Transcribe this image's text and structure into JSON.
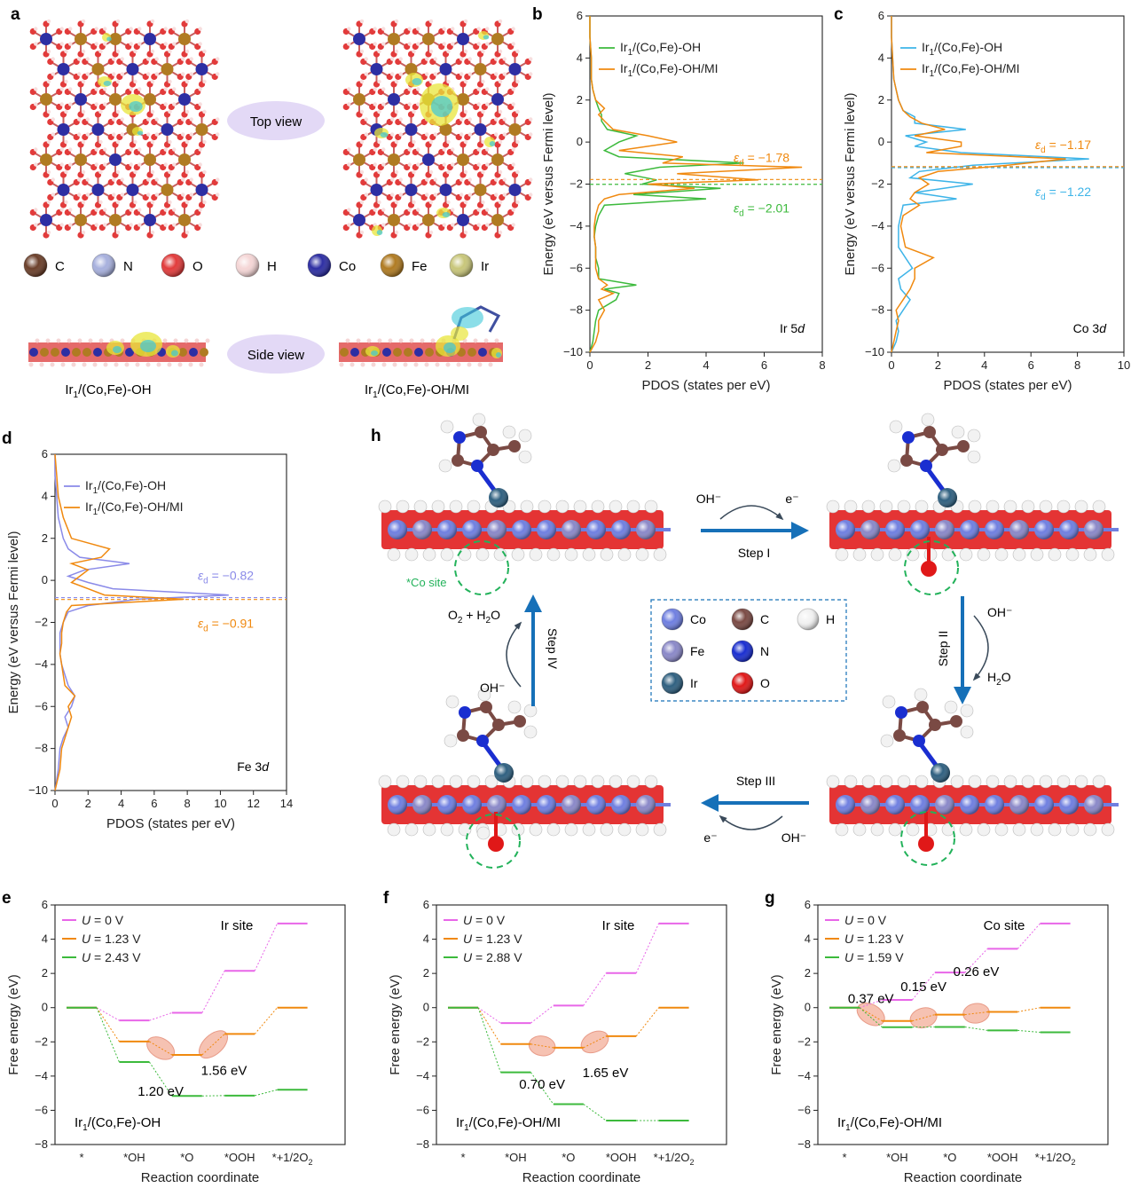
{
  "colors": {
    "orange": "#f0890f",
    "green": "#3cba3c",
    "cyan": "#3db4e8",
    "lavender": "#8a8ae8",
    "pink": "#e866e8",
    "blue_arrow": "#1670b8",
    "site_circle": "#22b25a",
    "bubble_fill": "#f4b7a5",
    "purple_label": "#e3d9f6"
  },
  "panel_a": {
    "letter": "a",
    "top_view_label": "Top view",
    "side_view_label": "Side view",
    "left_caption": "Ir1/(Co,Fe)-OH",
    "right_caption": "Ir1/(Co,Fe)-OH/MI",
    "legend": [
      {
        "symbol": "C",
        "color": "#6b3f2a"
      },
      {
        "symbol": "N",
        "color": "#a7b0dd"
      },
      {
        "symbol": "O",
        "color": "#e23b3b"
      },
      {
        "symbol": "H",
        "color": "#f5d6d6"
      },
      {
        "symbol": "Co",
        "color": "#2d2ea3"
      },
      {
        "symbol": "Fe",
        "color": "#b07b22"
      },
      {
        "symbol": "Ir",
        "color": "#c8c67a"
      }
    ]
  },
  "chart_data": [
    {
      "id": "b",
      "type": "line",
      "orientation": "horizontal-pdos",
      "xlabel": "PDOS (states per eV)",
      "ylabel": "Energy (eV versus Fermi level)",
      "xlim": [
        0,
        8
      ],
      "ylim": [
        -10,
        6
      ],
      "xticks": [
        0,
        2,
        4,
        6,
        8
      ],
      "yticks": [
        6,
        4,
        2,
        0,
        -2,
        -4,
        -6,
        -8,
        -10
      ],
      "annotation": "Ir 5d",
      "series": [
        {
          "name": "Ir1/(Co,Fe)-OH",
          "color": "green",
          "d_band_center": -2.01,
          "energy": [
            -10,
            -9.5,
            -9,
            -8.5,
            -8,
            -7.5,
            -7.2,
            -7,
            -6.8,
            -6.5,
            -6,
            -5.5,
            -5,
            -4.5,
            -4,
            -3.5,
            -3,
            -2.7,
            -2.5,
            -2.2,
            -2,
            -1.8,
            -1.5,
            -1.2,
            -1,
            -0.7,
            -0.4,
            0,
            0.3,
            0.6,
            1,
            1.3,
            1.6,
            2,
            2.5,
            3,
            4,
            5,
            6
          ],
          "pdos": [
            0,
            0.1,
            0.15,
            0.2,
            0.3,
            0.9,
            1.0,
            0.5,
            1.6,
            0.3,
            0.3,
            0.2,
            0.2,
            0.15,
            0.2,
            0.3,
            0.5,
            4.0,
            1.5,
            4.5,
            1.8,
            2.3,
            1.2,
            2.4,
            5.3,
            1.0,
            0.5,
            1.0,
            1.6,
            0.6,
            0.4,
            0.4,
            0.3,
            0.2,
            0.1,
            0.05,
            0.05,
            0,
            0
          ]
        },
        {
          "name": "Ir1/(Co,Fe)-OH/MI",
          "color": "orange",
          "d_band_center": -1.78,
          "energy": [
            -10,
            -9.5,
            -9,
            -8.5,
            -8,
            -7.5,
            -7.2,
            -7,
            -6.8,
            -6.5,
            -6,
            -5.5,
            -5,
            -4.5,
            -4,
            -3.5,
            -3,
            -2.7,
            -2.5,
            -2.2,
            -2,
            -1.8,
            -1.5,
            -1.2,
            -1,
            -0.7,
            -0.4,
            0,
            0.3,
            0.6,
            1,
            1.3,
            1.6,
            2,
            2.5,
            3,
            4,
            5,
            6
          ],
          "pdos": [
            0,
            0.2,
            0.3,
            0.3,
            0.5,
            0.3,
            0.8,
            0.4,
            0.6,
            0.3,
            0.2,
            0.2,
            0.2,
            0.15,
            0.15,
            0.2,
            0.3,
            0.5,
            1.0,
            3.6,
            2.0,
            5.8,
            3.0,
            7.3,
            2.5,
            3.2,
            1.0,
            3.0,
            2.0,
            0.8,
            0.5,
            0.3,
            0.5,
            0.2,
            0.1,
            0.05,
            0.05,
            0,
            0
          ]
        }
      ],
      "labels": [
        {
          "text": "εd = −1.78",
          "color": "orange"
        },
        {
          "text": "εd = −2.01",
          "color": "green"
        }
      ]
    },
    {
      "id": "c",
      "type": "line",
      "orientation": "horizontal-pdos",
      "xlabel": "PDOS (states per eV)",
      "ylabel": "Energy (eV versus Fermi level)",
      "xlim": [
        0,
        10
      ],
      "ylim": [
        -10,
        6
      ],
      "xticks": [
        0,
        2,
        4,
        6,
        8,
        10
      ],
      "yticks": [
        6,
        4,
        2,
        0,
        -2,
        -4,
        -6,
        -8,
        -10
      ],
      "annotation": "Co 3d",
      "series": [
        {
          "name": "Ir1/(Co,Fe)-OH",
          "color": "cyan",
          "d_band_center": -1.22,
          "energy": [
            -10,
            -9.5,
            -9,
            -8.5,
            -8,
            -7.5,
            -7,
            -6.5,
            -6,
            -5.5,
            -5,
            -4.5,
            -4,
            -3.5,
            -3,
            -2.7,
            -2.4,
            -2,
            -1.7,
            -1.4,
            -1.1,
            -0.8,
            -0.5,
            -0.2,
            0,
            0.3,
            0.6,
            0.9,
            1.2,
            1.5,
            2,
            2.5,
            3,
            4,
            5,
            6
          ],
          "pdos": [
            0,
            0.2,
            0.3,
            0.2,
            0.5,
            0.8,
            0.4,
            0.3,
            0.9,
            0.6,
            0.3,
            0.3,
            0.3,
            0.4,
            0.5,
            2.8,
            1.0,
            3.5,
            0.8,
            1.2,
            3.5,
            8.5,
            3.0,
            1.0,
            1.5,
            0.6,
            3.2,
            1.0,
            1.0,
            0.5,
            0.3,
            0.2,
            0.1,
            0.05,
            0,
            0
          ]
        },
        {
          "name": "Ir1/(Co,Fe)-OH/MI",
          "color": "orange",
          "d_band_center": -1.17,
          "energy": [
            -10,
            -9.5,
            -9,
            -8.5,
            -8,
            -7.5,
            -7,
            -6.5,
            -6,
            -5.5,
            -5,
            -4.5,
            -4,
            -3.5,
            -3,
            -2.7,
            -2.4,
            -2,
            -1.7,
            -1.4,
            -1.1,
            -0.8,
            -0.5,
            -0.2,
            0,
            0.3,
            0.6,
            0.9,
            1.2,
            1.5,
            2,
            2.5,
            3,
            4,
            5,
            6
          ],
          "pdos": [
            0,
            0.1,
            0.2,
            0.3,
            0.2,
            0.5,
            0.8,
            1.0,
            1.0,
            1.8,
            0.6,
            0.5,
            0.4,
            0.5,
            1.2,
            0.8,
            1.0,
            1.6,
            1.2,
            2.0,
            5.0,
            7.5,
            1.5,
            3.0,
            3.0,
            1.0,
            2.3,
            1.3,
            0.8,
            0.5,
            0.3,
            0.2,
            0.1,
            0.05,
            0,
            0
          ]
        }
      ],
      "labels": [
        {
          "text": "εd = −1.17",
          "color": "orange"
        },
        {
          "text": "εd = −1.22",
          "color": "cyan"
        }
      ]
    },
    {
      "id": "d",
      "type": "line",
      "orientation": "horizontal-pdos",
      "xlabel": "PDOS (states per eV)",
      "ylabel": "Energy (eV versus Fermi level)",
      "xlim": [
        0,
        14
      ],
      "ylim": [
        -10,
        6
      ],
      "xticks": [
        0,
        2,
        4,
        6,
        8,
        10,
        12,
        14
      ],
      "yticks": [
        6,
        4,
        2,
        0,
        -2,
        -4,
        -6,
        -8,
        -10
      ],
      "annotation": "Fe 3d",
      "series": [
        {
          "name": "Ir1/(Co,Fe)-OH",
          "color": "lavender",
          "d_band_center": -0.82,
          "energy": [
            -10,
            -9,
            -8,
            -7.5,
            -7,
            -6.5,
            -6,
            -5.5,
            -5,
            -4.5,
            -4,
            -3.5,
            -3,
            -2.5,
            -2,
            -1.5,
            -1.2,
            -0.9,
            -0.7,
            -0.4,
            -0.1,
            0.2,
            0.5,
            0.8,
            1.1,
            1.5,
            2,
            3,
            4,
            5,
            6
          ],
          "pdos": [
            0,
            0.2,
            0.3,
            0.5,
            0.8,
            0.6,
            1.0,
            1.2,
            0.8,
            0.6,
            0.4,
            0.3,
            0.3,
            0.3,
            0.5,
            0.8,
            2.0,
            5.0,
            10.5,
            3.5,
            2.0,
            0.8,
            1.8,
            4.5,
            1.5,
            0.8,
            0.5,
            0.2,
            0.1,
            0,
            0
          ]
        },
        {
          "name": "Ir1/(Co,Fe)-OH/MI",
          "color": "orange",
          "d_band_center": -0.91,
          "energy": [
            -10,
            -9,
            -8,
            -7.5,
            -7,
            -6.5,
            -6,
            -5.5,
            -5,
            -4.5,
            -4,
            -3.5,
            -3,
            -2.5,
            -2,
            -1.5,
            -1.2,
            -0.9,
            -0.7,
            -0.4,
            -0.1,
            0.2,
            0.5,
            0.8,
            1.1,
            1.5,
            2,
            3,
            4,
            5,
            6
          ],
          "pdos": [
            0,
            0.3,
            0.4,
            0.6,
            0.8,
            1.0,
            0.8,
            1.2,
            0.6,
            0.5,
            0.4,
            0.3,
            0.4,
            0.4,
            0.5,
            0.7,
            1.0,
            7.8,
            3.0,
            2.0,
            1.0,
            1.5,
            2.0,
            1.0,
            2.8,
            3.3,
            1.0,
            0.5,
            0.2,
            0.1,
            0
          ]
        }
      ],
      "labels": [
        {
          "text": "εd = −0.82",
          "color": "lavender"
        },
        {
          "text": "εd = −0.91",
          "color": "orange"
        }
      ]
    },
    {
      "id": "e",
      "type": "line",
      "subtype": "free-energy-steps",
      "xlabel": "Reaction coordinate",
      "ylabel": "Free energy (eV)",
      "ylim": [
        -8,
        6
      ],
      "yticks": [
        6,
        4,
        2,
        0,
        -2,
        -4,
        -6,
        -8
      ],
      "categories": [
        "*",
        "*OH",
        "*O",
        "*OOH",
        "*+1/2O2"
      ],
      "site_label": "Ir site",
      "material_label": "Ir1/(Co,Fe)-OH",
      "series": [
        {
          "name": "U = 0 V",
          "color": "pink",
          "values": [
            0,
            -0.75,
            -0.3,
            2.15,
            4.92
          ]
        },
        {
          "name": "U = 1.23 V",
          "color": "orange",
          "values": [
            0,
            -1.98,
            -2.76,
            -1.54,
            0
          ]
        },
        {
          "name": "U = 2.43 V",
          "color": "green",
          "values": [
            0,
            -3.18,
            -5.16,
            -5.14,
            -4.8
          ]
        }
      ],
      "barriers": [
        {
          "text": "1.20 eV",
          "step": 2
        },
        {
          "text": "1.56 eV",
          "step": 3
        }
      ]
    },
    {
      "id": "f",
      "type": "line",
      "subtype": "free-energy-steps",
      "xlabel": "Reaction coordinate",
      "ylabel": "Free energy (eV)",
      "ylim": [
        -8,
        6
      ],
      "yticks": [
        6,
        4,
        2,
        0,
        -2,
        -4,
        -6,
        -8
      ],
      "categories": [
        "*",
        "*OH",
        "*O",
        "*OOH",
        "*+1/2O2"
      ],
      "site_label": "Ir site",
      "material_label": "Ir1/(Co,Fe)-OH/MI",
      "series": [
        {
          "name": "U = 0 V",
          "color": "pink",
          "values": [
            0,
            -0.9,
            0.12,
            2.02,
            4.92
          ]
        },
        {
          "name": "U = 1.23 V",
          "color": "orange",
          "values": [
            0,
            -2.13,
            -2.34,
            -1.67,
            0
          ]
        },
        {
          "name": "U = 2.88 V",
          "color": "green",
          "values": [
            0,
            -3.78,
            -5.64,
            -6.6,
            -6.6
          ]
        }
      ],
      "barriers": [
        {
          "text": "0.70 eV",
          "step": 2
        },
        {
          "text": "1.65 eV",
          "step": 3
        }
      ]
    },
    {
      "id": "g",
      "type": "line",
      "subtype": "free-energy-steps",
      "xlabel": "Reaction coordinate",
      "ylabel": "Free energy (eV)",
      "ylim": [
        -8,
        6
      ],
      "yticks": [
        6,
        4,
        2,
        0,
        -2,
        -4,
        -6,
        -8
      ],
      "categories": [
        "*",
        "*OH",
        "*O",
        "*OOH",
        "*+1/2O2"
      ],
      "site_label": "Co site",
      "material_label": "Ir1/(Co,Fe)-OH/MI",
      "series": [
        {
          "name": "U = 0 V",
          "color": "pink",
          "values": [
            0,
            0.45,
            2.05,
            3.44,
            4.92
          ]
        },
        {
          "name": "U = 1.23 V",
          "color": "orange",
          "values": [
            0,
            -0.78,
            -0.41,
            -0.25,
            0
          ]
        },
        {
          "name": "U = 1.59 V",
          "color": "green",
          "values": [
            0,
            -1.14,
            -1.13,
            -1.33,
            -1.44
          ]
        }
      ],
      "barriers": [
        {
          "text": "0.37 eV",
          "step": 1
        },
        {
          "text": "0.15 eV",
          "step": 2
        },
        {
          "text": "0.26 eV",
          "step": 3
        }
      ]
    }
  ],
  "panel_h": {
    "letter": "h",
    "co_site_label": "*Co site",
    "steps": {
      "step1": {
        "label": "Step I",
        "reactant": "OH⁻",
        "product": "e⁻"
      },
      "step2": {
        "label": "Step II",
        "reactant": "OH⁻",
        "product": "H2O"
      },
      "step3": {
        "label": "Step III",
        "reactant": "OH⁻",
        "product": "e⁻"
      },
      "step4": {
        "label": "Step IV",
        "reactant": "OH⁻",
        "product": "O2 + H2O"
      }
    },
    "legend": [
      {
        "symbol": "Co",
        "color": "#6f7fe0"
      },
      {
        "symbol": "C",
        "color": "#7a4a44"
      },
      {
        "symbol": "H",
        "color": "#f2f2f2"
      },
      {
        "symbol": "Fe",
        "color": "#8a88c8"
      },
      {
        "symbol": "N",
        "color": "#1a2ed0"
      },
      {
        "symbol": "Ir",
        "color": "#2f6080"
      },
      {
        "symbol": "O",
        "color": "#e01818"
      }
    ]
  }
}
